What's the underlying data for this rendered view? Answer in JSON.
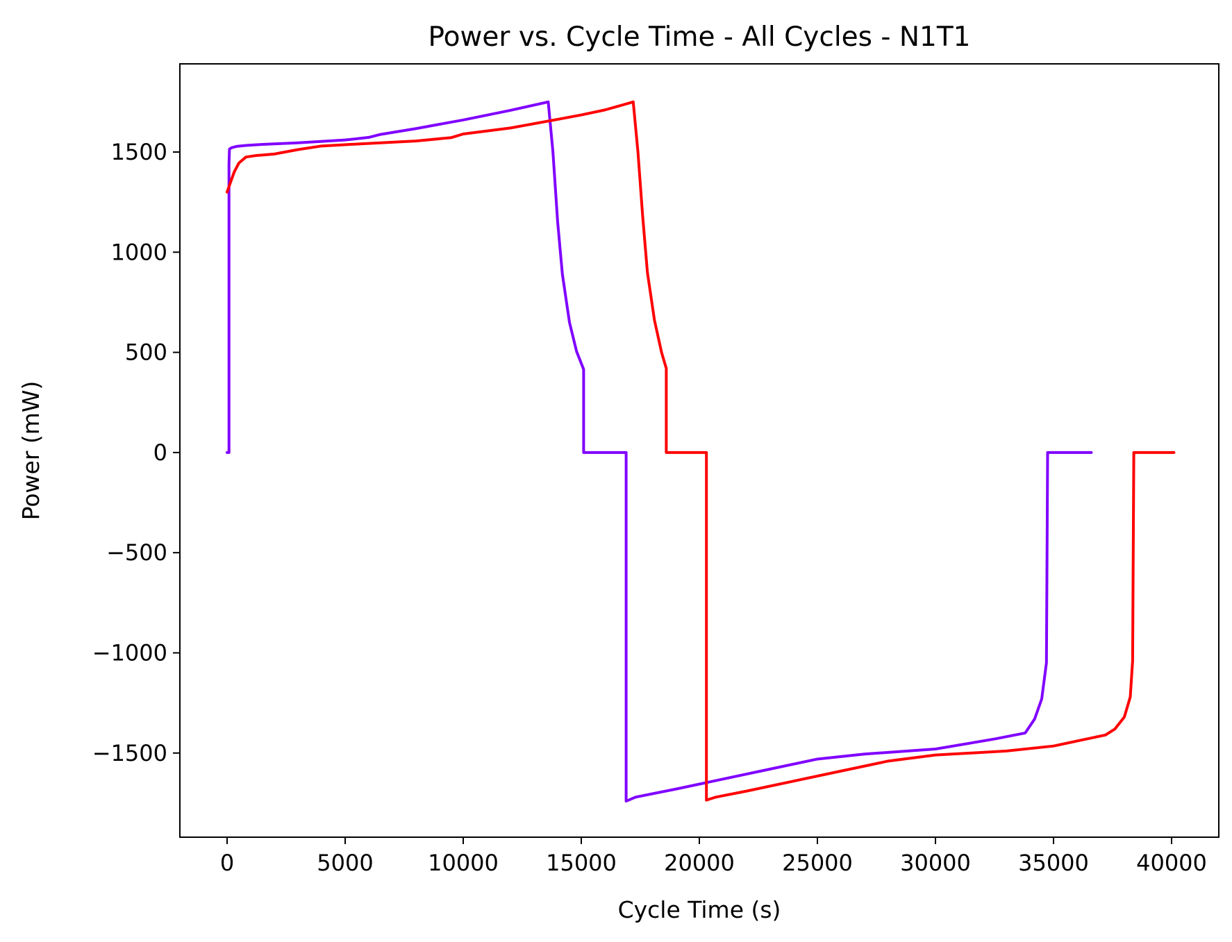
{
  "chart_data": {
    "type": "line",
    "title": "Power vs. Cycle Time - All Cycles - N1T1",
    "xlabel": "Cycle Time (s)",
    "ylabel": "Power (mW)",
    "xlim": [
      -2000,
      42000
    ],
    "ylim": [
      -1920,
      1940
    ],
    "x_ticks": [
      0,
      5000,
      10000,
      15000,
      20000,
      25000,
      30000,
      35000,
      40000
    ],
    "x_tick_labels": [
      "0",
      "5000",
      "10000",
      "15000",
      "20000",
      "25000",
      "30000",
      "35000",
      "40000"
    ],
    "y_ticks": [
      -1500,
      -1000,
      -500,
      0,
      500,
      1000,
      1500
    ],
    "y_tick_labels": [
      "−1500",
      "−1000",
      "−500",
      "0",
      "500",
      "1000",
      "1500"
    ],
    "grid": false,
    "legend": false,
    "series": [
      {
        "color": "#8000ff",
        "points": [
          [
            0,
            0
          ],
          [
            80,
            0
          ],
          [
            80,
            1440
          ],
          [
            100,
            1515
          ],
          [
            200,
            1522
          ],
          [
            400,
            1528
          ],
          [
            800,
            1533
          ],
          [
            1500,
            1538
          ],
          [
            3000,
            1546
          ],
          [
            5000,
            1560
          ],
          [
            6000,
            1573
          ],
          [
            6500,
            1588
          ],
          [
            8000,
            1617
          ],
          [
            10000,
            1660
          ],
          [
            12000,
            1708
          ],
          [
            13600,
            1750
          ],
          [
            13800,
            1500
          ],
          [
            14000,
            1150
          ],
          [
            14200,
            890
          ],
          [
            14500,
            650
          ],
          [
            14800,
            505
          ],
          [
            15100,
            415
          ],
          [
            15100,
            0
          ],
          [
            16900,
            0
          ],
          [
            16900,
            -1740
          ],
          [
            17300,
            -1720
          ],
          [
            19000,
            -1680
          ],
          [
            21000,
            -1630
          ],
          [
            23000,
            -1580
          ],
          [
            25000,
            -1530
          ],
          [
            27000,
            -1505
          ],
          [
            30000,
            -1480
          ],
          [
            32500,
            -1430
          ],
          [
            33800,
            -1400
          ],
          [
            34200,
            -1330
          ],
          [
            34500,
            -1230
          ],
          [
            34700,
            -1050
          ],
          [
            34750,
            0
          ],
          [
            36600,
            0
          ]
        ]
      },
      {
        "color": "#ff0000",
        "points": [
          [
            0,
            1300
          ],
          [
            150,
            1350
          ],
          [
            300,
            1400
          ],
          [
            500,
            1445
          ],
          [
            800,
            1475
          ],
          [
            1200,
            1482
          ],
          [
            2000,
            1490
          ],
          [
            3000,
            1512
          ],
          [
            4000,
            1530
          ],
          [
            6000,
            1543
          ],
          [
            8000,
            1555
          ],
          [
            9500,
            1572
          ],
          [
            10000,
            1590
          ],
          [
            12000,
            1620
          ],
          [
            14000,
            1663
          ],
          [
            15000,
            1685
          ],
          [
            16000,
            1710
          ],
          [
            17200,
            1750
          ],
          [
            17400,
            1500
          ],
          [
            17600,
            1180
          ],
          [
            17800,
            900
          ],
          [
            18100,
            660
          ],
          [
            18400,
            500
          ],
          [
            18600,
            420
          ],
          [
            18600,
            0
          ],
          [
            20300,
            0
          ],
          [
            20300,
            -1735
          ],
          [
            20700,
            -1720
          ],
          [
            22000,
            -1690
          ],
          [
            24000,
            -1640
          ],
          [
            26000,
            -1590
          ],
          [
            28000,
            -1540
          ],
          [
            30000,
            -1510
          ],
          [
            33000,
            -1490
          ],
          [
            35000,
            -1465
          ],
          [
            36000,
            -1440
          ],
          [
            37200,
            -1410
          ],
          [
            37600,
            -1380
          ],
          [
            38000,
            -1320
          ],
          [
            38250,
            -1220
          ],
          [
            38350,
            -1040
          ],
          [
            38400,
            0
          ],
          [
            40100,
            0
          ]
        ]
      }
    ]
  }
}
